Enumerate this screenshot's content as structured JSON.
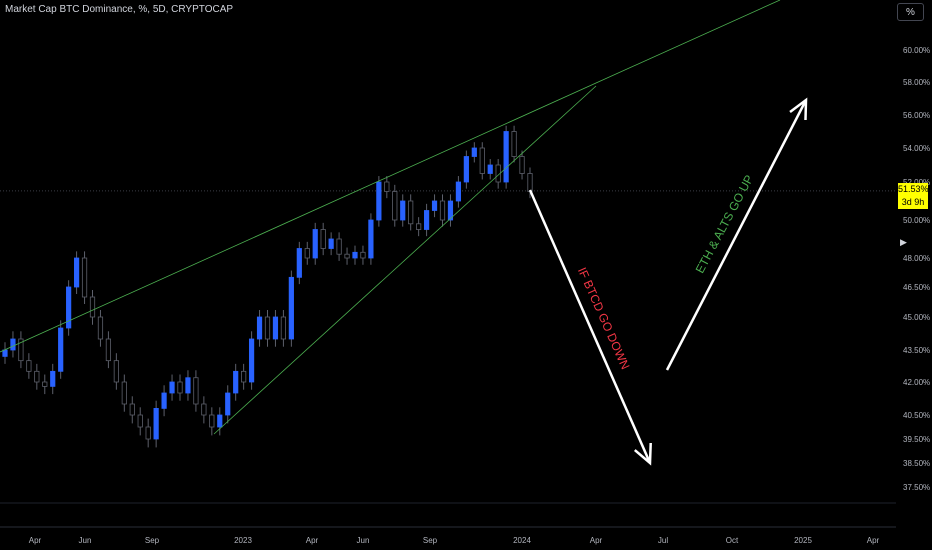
{
  "header": {
    "title": "Market Cap BTC Dominance, %, 5D, CRYPTOCAP",
    "scale_button": "%"
  },
  "price_tag": {
    "value": "51.53%",
    "countdown": "3d 9h",
    "color": "#ffff00"
  },
  "colors": {
    "background": "#000000",
    "up_candle": "#2962ff",
    "down_candle": "#000000",
    "candle_outline": "#5d606b",
    "trendline": "#4caf50",
    "annotation_down": "#f23645",
    "annotation_up": "#4caf50",
    "arrow": "#ffffff"
  },
  "chart_data": {
    "type": "candlestick",
    "title": "Market Cap BTC Dominance, %, 5D, CRYPTOCAP",
    "y_ticks": [
      "60.00%",
      "58.00%",
      "56.00%",
      "54.00%",
      "52.00%",
      "50.00%",
      "48.00%",
      "46.50%",
      "45.00%",
      "43.50%",
      "42.00%",
      "40.50%",
      "39.50%",
      "38.50%",
      "37.50%"
    ],
    "x_ticks": [
      "Apr",
      "Jun",
      "Sep",
      "2023",
      "Apr",
      "Jun",
      "Sep",
      "2024",
      "Apr",
      "Jul",
      "Oct",
      "2025",
      "Apr"
    ],
    "closes_approx": [
      43.5,
      44.0,
      43.0,
      42.5,
      42.0,
      41.8,
      42.5,
      44.5,
      46.5,
      48.0,
      46.0,
      45.0,
      44.0,
      43.0,
      42.0,
      41.0,
      40.5,
      40.0,
      39.5,
      40.8,
      41.5,
      42.0,
      41.5,
      42.2,
      41.0,
      40.5,
      40.0,
      40.5,
      41.5,
      42.5,
      42.0,
      44.0,
      45.0,
      44.0,
      45.0,
      44.0,
      47.0,
      48.5,
      48.0,
      49.5,
      48.5,
      49.0,
      48.2,
      48.0,
      48.3,
      48.0,
      50.0,
      52.0,
      51.5,
      50.0,
      51.0,
      49.8,
      49.5,
      50.5,
      51.0,
      50.0,
      51.0,
      52.0,
      53.5,
      54.0,
      52.5,
      53.0,
      52.0,
      55.0,
      53.5,
      52.5,
      51.5
    ],
    "last_value": 51.53,
    "annotations": [
      {
        "text": "IF BTCD GO DOWN",
        "color": "#f23645"
      },
      {
        "text": "ETH & ALTS GO UP",
        "color": "#4caf50"
      }
    ],
    "grid": false,
    "legend": "none"
  }
}
